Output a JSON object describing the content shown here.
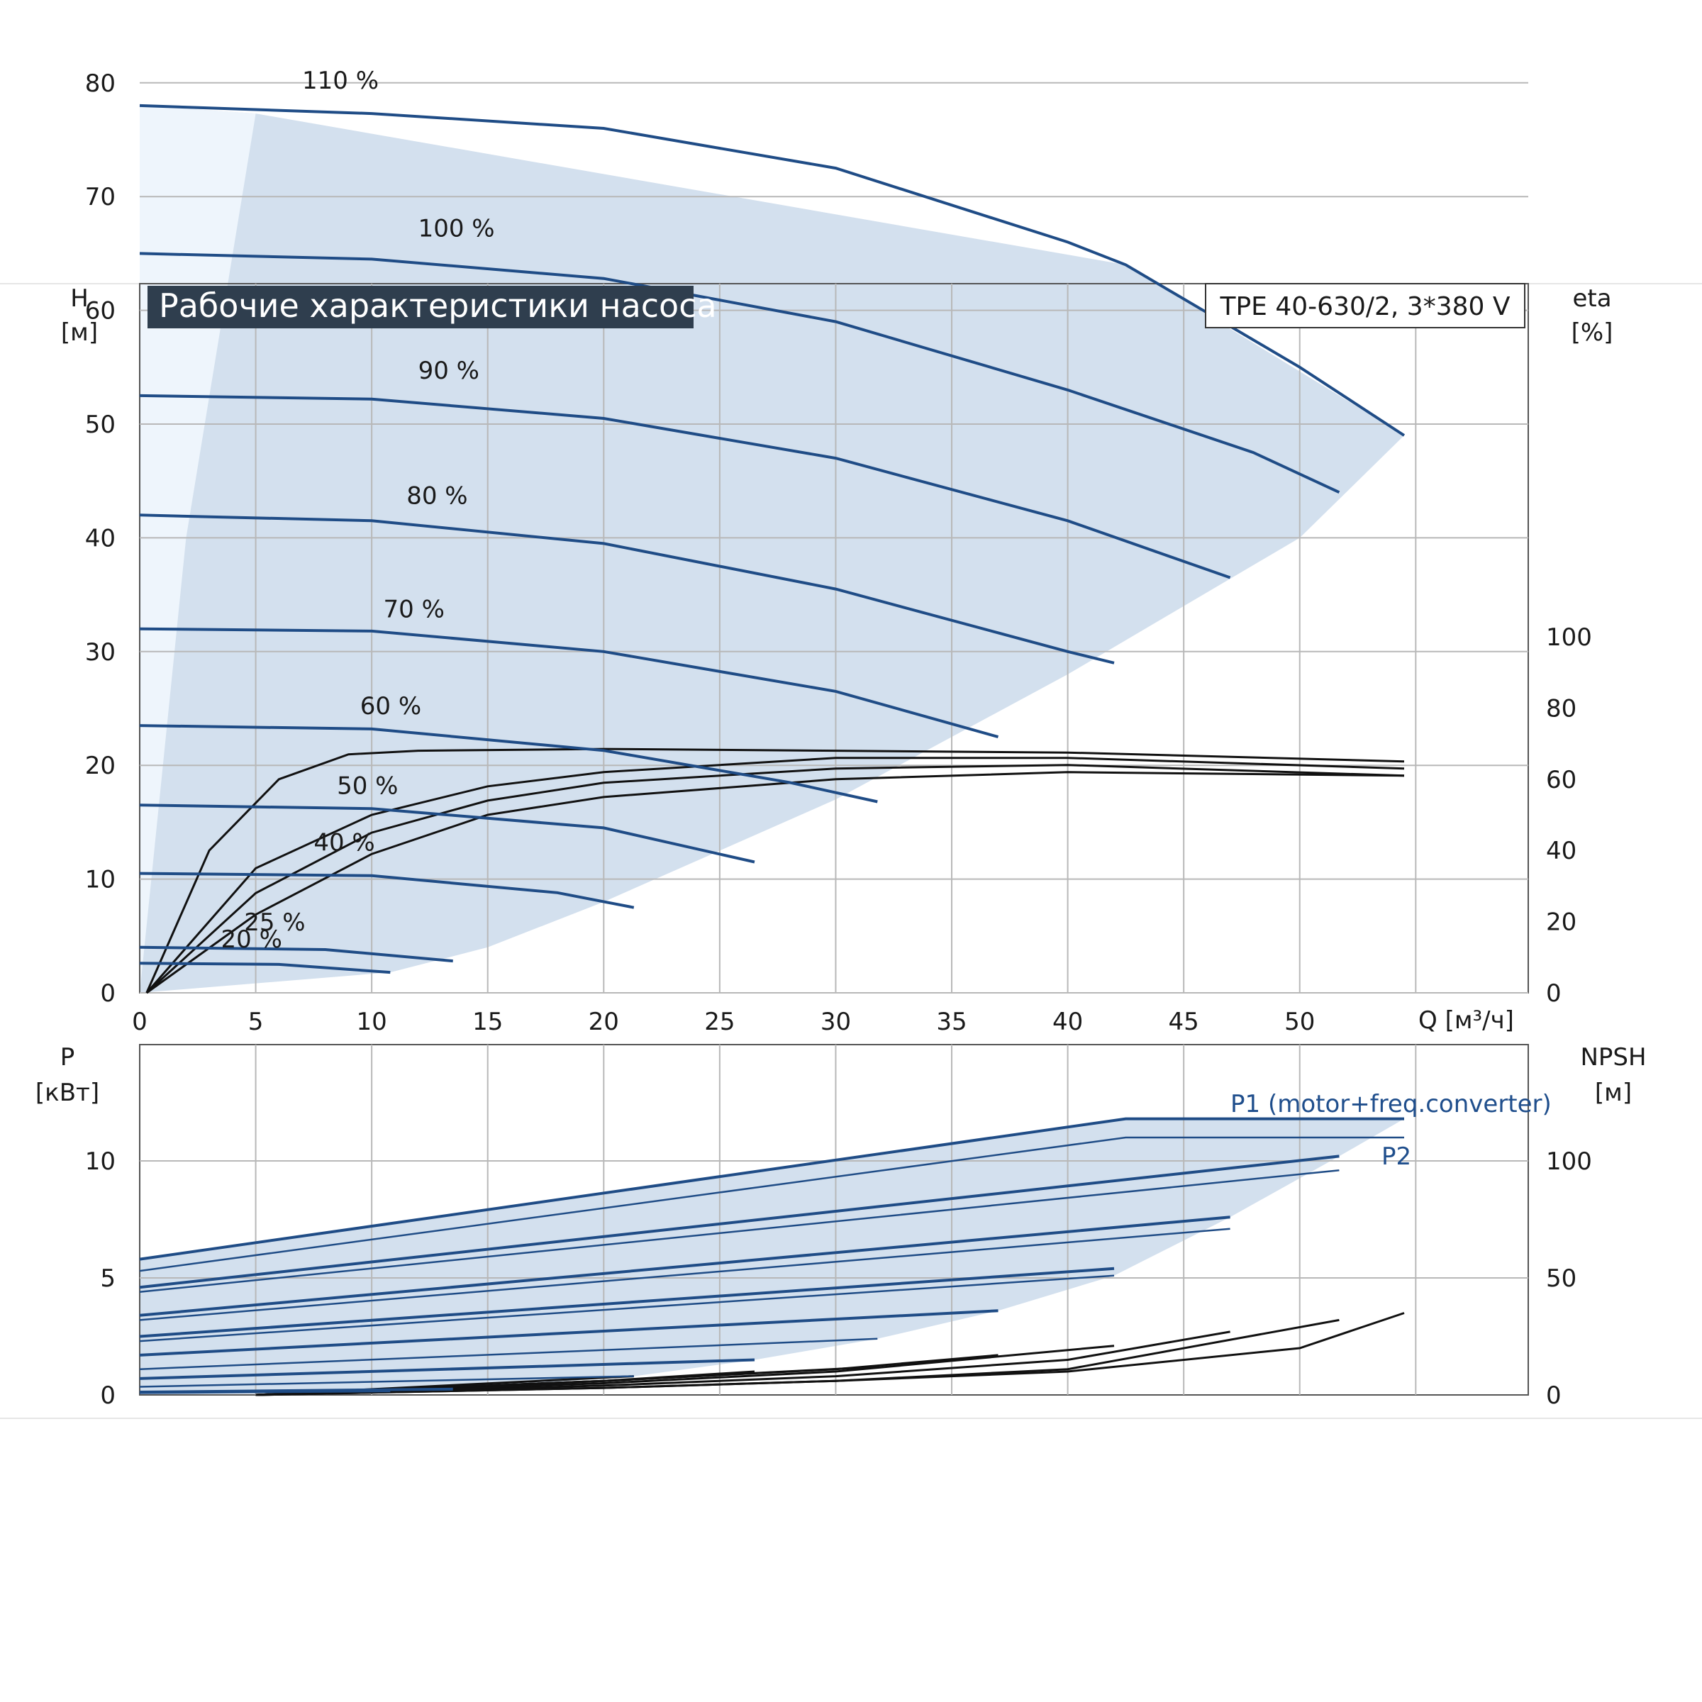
{
  "header": {
    "title": "Рабочие характеристики насоса",
    "model": "TPE 40-630/2, 3*380 V"
  },
  "colors": {
    "curve": "#1f4c86",
    "efficiency": "#111111",
    "area": "#d3e0ee",
    "area_light": "#eef5fc",
    "grid": "#b8b8b8",
    "title_bg": "#2f3e4e"
  },
  "chart_data": [
    {
      "type": "line",
      "name": "head",
      "xlabel": "Q [м³/ч]",
      "ylabel_left": [
        "H",
        "[м]"
      ],
      "ylabel_right": [
        "eta",
        "[%]"
      ],
      "xlim": [
        0,
        60
      ],
      "ylim": [
        0,
        100
      ],
      "y2lim": [
        0,
        150
      ],
      "grid": true,
      "x_ticks": [
        "0",
        "5",
        "10",
        "15",
        "20",
        "25",
        "30",
        "35",
        "40",
        "45",
        "50"
      ],
      "y_ticks_left": [
        "0",
        "10",
        "20",
        "30",
        "40",
        "50",
        "60",
        "70",
        "80"
      ],
      "y_ticks_right": [
        "0",
        "20",
        "40",
        "60",
        "80",
        "100"
      ],
      "speed_curves": [
        {
          "label": "110 %",
          "x": [
            0,
            10,
            20,
            30,
            40,
            42.5,
            50,
            54.5
          ],
          "y": [
            78,
            77.3,
            76,
            72.5,
            66,
            64,
            55,
            49
          ]
        },
        {
          "label": "100 %",
          "x": [
            0,
            10,
            20,
            30,
            40,
            48,
            51.7
          ],
          "y": [
            65,
            64.5,
            62.8,
            59,
            53,
            47.5,
            44
          ]
        },
        {
          "label": "90 %",
          "x": [
            0,
            10,
            20,
            30,
            40,
            47
          ],
          "y": [
            52.5,
            52.2,
            50.5,
            47,
            41.5,
            36.5
          ]
        },
        {
          "label": "80 %",
          "x": [
            0,
            10,
            20,
            30,
            40,
            42
          ],
          "y": [
            42,
            41.5,
            39.5,
            35.5,
            30,
            29
          ]
        },
        {
          "label": "70 %",
          "x": [
            0,
            10,
            20,
            30,
            37
          ],
          "y": [
            32,
            31.8,
            30,
            26.5,
            22.5
          ]
        },
        {
          "label": "60 %",
          "x": [
            0,
            10,
            20,
            28,
            31.8
          ],
          "y": [
            23.5,
            23.2,
            21.3,
            18.5,
            16.8
          ]
        },
        {
          "label": "50 %",
          "x": [
            0,
            10,
            20,
            26.5
          ],
          "y": [
            16.5,
            16.2,
            14.5,
            11.5
          ]
        },
        {
          "label": "40 %",
          "x": [
            0,
            10,
            18,
            21.3
          ],
          "y": [
            10.5,
            10.3,
            8.8,
            7.5
          ]
        },
        {
          "label": "25 %",
          "x": [
            0,
            8,
            13.5
          ],
          "y": [
            4,
            3.8,
            2.8
          ]
        },
        {
          "label": "20 %",
          "x": [
            0,
            6,
            10.8
          ],
          "y": [
            2.6,
            2.5,
            1.8
          ]
        }
      ],
      "efficiency_curves": [
        {
          "x": [
            0.3,
            3,
            6,
            9,
            12,
            20,
            30,
            40,
            54.5
          ],
          "y": [
            0,
            40,
            60,
            67,
            68,
            68.5,
            68,
            67.5,
            65
          ]
        },
        {
          "x": [
            0.3,
            5,
            10,
            15,
            20,
            30,
            40,
            54.5
          ],
          "y": [
            0,
            35,
            50,
            58,
            62,
            66,
            66,
            63
          ]
        },
        {
          "x": [
            0.3,
            5,
            10,
            15,
            20,
            30,
            40,
            54.5
          ],
          "y": [
            0,
            28,
            45,
            54,
            59,
            63,
            64,
            61
          ]
        },
        {
          "x": [
            0.3,
            5,
            10,
            15,
            20,
            30,
            40,
            54.5
          ],
          "y": [
            0,
            22,
            39,
            50,
            55,
            60,
            62,
            61
          ]
        }
      ],
      "operating_range": {
        "outer": [
          [
            0,
            0
          ],
          [
            0,
            78
          ],
          [
            5,
            77.3
          ],
          [
            42.5,
            64
          ],
          [
            54.5,
            49
          ],
          [
            50,
            40
          ],
          [
            40,
            28
          ],
          [
            30,
            17
          ],
          [
            20,
            8
          ],
          [
            15,
            4
          ],
          [
            10.8,
            1.8
          ],
          [
            0,
            0
          ]
        ],
        "min_flow": [
          [
            0,
            0
          ],
          [
            0,
            78
          ],
          [
            5,
            77.3
          ],
          [
            2,
            40
          ],
          [
            0.5,
            10
          ],
          [
            0,
            0
          ]
        ]
      },
      "labels": [
        "110 %",
        "100 %",
        "90 %",
        "80 %",
        "70 %",
        "60 %",
        "50 %",
        "40 %",
        "25 %",
        "20 %"
      ]
    },
    {
      "type": "line",
      "name": "power",
      "ylabel_left": [
        "P",
        "[кВт]"
      ],
      "ylabel_right": [
        "NPSH",
        "[м]"
      ],
      "xlim": [
        0,
        60
      ],
      "ylim": [
        0,
        15
      ],
      "y2lim": [
        0,
        150
      ],
      "y_ticks_left": [
        "0",
        "5",
        "10"
      ],
      "y_ticks_right": [
        "0",
        "50",
        "100"
      ],
      "p1_label": "P1 (motor+freq.converter)",
      "p2_label": "P2",
      "power_curves": [
        {
          "x": [
            0,
            42.5,
            54.5
          ],
          "y": [
            5.8,
            11.8,
            11.8
          ]
        },
        {
          "x": [
            0,
            42.5,
            54.5
          ],
          "y": [
            5.3,
            11.0,
            11.0
          ]
        },
        {
          "x": [
            0,
            51.7
          ],
          "y": [
            4.6,
            10.2
          ]
        },
        {
          "x": [
            0,
            51.7
          ],
          "y": [
            4.4,
            9.6
          ]
        },
        {
          "x": [
            0,
            47
          ],
          "y": [
            3.4,
            7.6
          ]
        },
        {
          "x": [
            0,
            47
          ],
          "y": [
            3.2,
            7.1
          ]
        },
        {
          "x": [
            0,
            42
          ],
          "y": [
            2.5,
            5.4
          ]
        },
        {
          "x": [
            0,
            42
          ],
          "y": [
            2.3,
            5.1
          ]
        },
        {
          "x": [
            0,
            37
          ],
          "y": [
            1.7,
            3.6
          ]
        },
        {
          "x": [
            0,
            31.8
          ],
          "y": [
            1.1,
            2.4
          ]
        },
        {
          "x": [
            0,
            26.5
          ],
          "y": [
            0.7,
            1.5
          ]
        },
        {
          "x": [
            0,
            21.3
          ],
          "y": [
            0.35,
            0.8
          ]
        },
        {
          "x": [
            0,
            13.5
          ],
          "y": [
            0.12,
            0.25
          ]
        },
        {
          "x": [
            0,
            10.8
          ],
          "y": [
            0.08,
            0.15
          ]
        }
      ],
      "npsh_curves": [
        {
          "x": [
            5,
            20,
            30,
            40,
            50,
            54.5
          ],
          "y": [
            0,
            3,
            6,
            10,
            20,
            35
          ]
        },
        {
          "x": [
            5,
            20,
            30,
            40,
            51.7
          ],
          "y": [
            0,
            3,
            6,
            11,
            32
          ]
        },
        {
          "x": [
            5,
            20,
            30,
            40,
            47
          ],
          "y": [
            0,
            4,
            8,
            15,
            27
          ]
        },
        {
          "x": [
            5,
            20,
            30,
            42
          ],
          "y": [
            0,
            5,
            10,
            21
          ]
        },
        {
          "x": [
            5,
            20,
            30,
            37
          ],
          "y": [
            0,
            6,
            11,
            17
          ]
        },
        {
          "x": [
            5,
            20,
            31.8
          ],
          "y": [
            0,
            6,
            12
          ]
        },
        {
          "x": [
            5,
            20,
            26.5
          ],
          "y": [
            0,
            6,
            10
          ]
        },
        {
          "x": [
            5,
            21.3
          ],
          "y": [
            0,
            8
          ]
        }
      ],
      "operating_range": [
        [
          0,
          0
        ],
        [
          0,
          5.8
        ],
        [
          5,
          6.5
        ],
        [
          42.5,
          11.8
        ],
        [
          54.5,
          11.8
        ],
        [
          51.7,
          10.2
        ],
        [
          47,
          7.6
        ],
        [
          42,
          5.1
        ],
        [
          37,
          3.6
        ],
        [
          31.8,
          2.4
        ],
        [
          26.5,
          1.5
        ],
        [
          21.3,
          0.8
        ],
        [
          13.5,
          0.25
        ],
        [
          10.8,
          0.15
        ],
        [
          0,
          0
        ]
      ]
    }
  ]
}
